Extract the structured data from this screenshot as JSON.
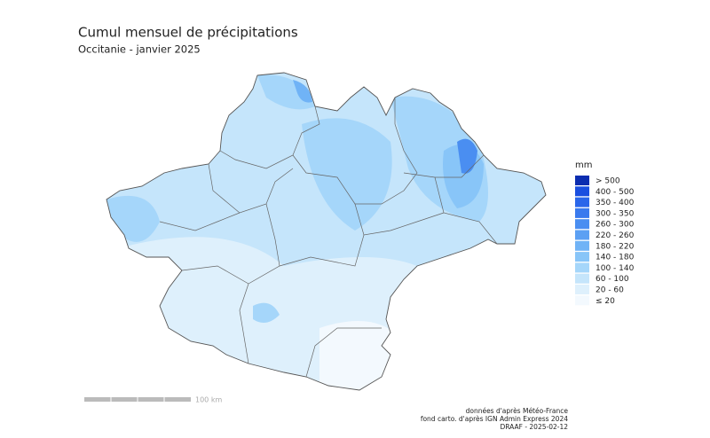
{
  "header": {
    "title": "Cumul mensuel de précipitations",
    "subtitle": "Occitanie - janvier 2025"
  },
  "legend": {
    "title": "mm",
    "items": [
      {
        "label": "> 500",
        "color": "#0b2db0"
      },
      {
        "label": "400 - 500",
        "color": "#1a4fe0"
      },
      {
        "label": "350 - 400",
        "color": "#2a66ea"
      },
      {
        "label": "300 - 350",
        "color": "#3a7aee"
      },
      {
        "label": "260 - 300",
        "color": "#4a8ef1"
      },
      {
        "label": "220 - 260",
        "color": "#5ca0f3"
      },
      {
        "label": "180 - 220",
        "color": "#70b3f6"
      },
      {
        "label": "140 - 180",
        "color": "#88c5f8"
      },
      {
        "label": "100 - 140",
        "color": "#a5d6fa"
      },
      {
        "label": "60 - 100",
        "color": "#c5e5fb"
      },
      {
        "label": "20 - 60",
        "color": "#def0fc"
      },
      {
        "label": "≤ 20",
        "color": "#f3f9fe"
      }
    ]
  },
  "scale": {
    "label": "100 km"
  },
  "credits": [
    "données d'après Météo-France",
    "fond carto. d'après IGN Admin Express 2024",
    "DRAAF - 2025-02-12"
  ]
}
